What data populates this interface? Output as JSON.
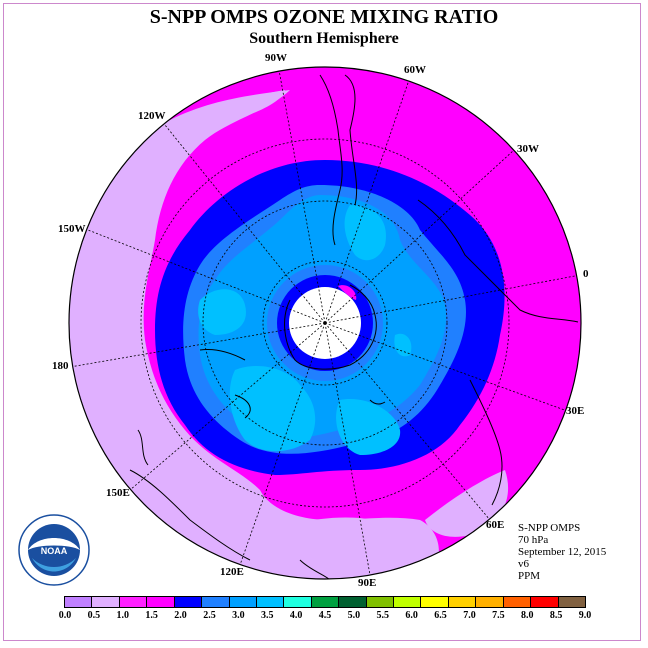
{
  "title": "S-NPP OMPS OZONE MIXING RATIO",
  "subtitle": "Southern Hemisphere",
  "longitude_labels": [
    {
      "text": "90W"
    },
    {
      "text": "60W"
    },
    {
      "text": "120W"
    },
    {
      "text": "30W"
    },
    {
      "text": "150W"
    },
    {
      "text": "0"
    },
    {
      "text": "180"
    },
    {
      "text": "30E"
    },
    {
      "text": "150E"
    },
    {
      "text": "60E"
    },
    {
      "text": "120E"
    },
    {
      "text": "90E"
    }
  ],
  "info": {
    "instrument": "S-NPP OMPS",
    "level": "70 hPa",
    "date": "September 12, 2015",
    "version": "v6",
    "units": "PPM"
  },
  "colorbar": {
    "colors": [
      "#c080ff",
      "#e0b0ff",
      "#ff20ff",
      "#ff00ff",
      "#0000ff",
      "#2080ff",
      "#00a0ff",
      "#00c0ff",
      "#20ffe0",
      "#00a040",
      "#006030",
      "#80c000",
      "#c0ff00",
      "#ffff00",
      "#ffd000",
      "#ffb000",
      "#ff6000",
      "#ff0000",
      "#806040"
    ],
    "tick_labels": [
      "0.0",
      "0.5",
      "1.0",
      "1.5",
      "2.0",
      "2.5",
      "3.0",
      "3.5",
      "4.0",
      "4.5",
      "5.0",
      "5.5",
      "6.0",
      "6.5",
      "7.0",
      "7.5",
      "8.0",
      "8.5",
      "9.0"
    ]
  },
  "logo": {
    "text": "NOAA",
    "icon": "noaa-logo-icon"
  }
}
